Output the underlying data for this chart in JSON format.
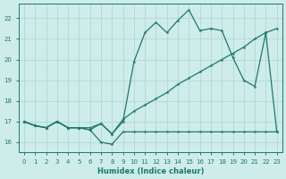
{
  "x": [
    0,
    1,
    2,
    3,
    4,
    5,
    6,
    7,
    8,
    9,
    10,
    11,
    12,
    13,
    14,
    15,
    16,
    17,
    18,
    19,
    20,
    21,
    22,
    23
  ],
  "line_flat": [
    17.0,
    16.8,
    16.7,
    17.0,
    16.7,
    16.7,
    16.6,
    16.0,
    15.9,
    16.5,
    16.5,
    16.5,
    16.5,
    16.5,
    16.5,
    16.5,
    16.5,
    16.5,
    16.5,
    16.5,
    16.5,
    16.5,
    16.5,
    16.5
  ],
  "line_diag": [
    17.0,
    16.8,
    16.7,
    17.0,
    16.7,
    16.7,
    16.7,
    16.9,
    16.4,
    17.1,
    17.5,
    17.8,
    18.1,
    18.4,
    18.8,
    19.1,
    19.4,
    19.7,
    20.0,
    20.3,
    20.6,
    21.0,
    21.3,
    21.5
  ],
  "line_zigzag": [
    17.0,
    16.8,
    16.7,
    17.0,
    16.7,
    16.7,
    16.6,
    16.9,
    16.4,
    17.0,
    19.9,
    21.3,
    21.8,
    21.3,
    21.9,
    22.4,
    21.4,
    21.5,
    21.4,
    20.1,
    19.0,
    18.7,
    21.3,
    16.5
  ],
  "bg_color": "#ceecea",
  "line_color": "#1a7a6e",
  "grid_color": "#aed4d0",
  "xlabel": "Humidex (Indice chaleur)",
  "ylim": [
    15.5,
    22.7
  ],
  "xlim": [
    -0.5,
    23.5
  ],
  "yticks": [
    16,
    17,
    18,
    19,
    20,
    21,
    22
  ],
  "xticks": [
    0,
    1,
    2,
    3,
    4,
    5,
    6,
    7,
    8,
    9,
    10,
    11,
    12,
    13,
    14,
    15,
    16,
    17,
    18,
    19,
    20,
    21,
    22,
    23
  ]
}
